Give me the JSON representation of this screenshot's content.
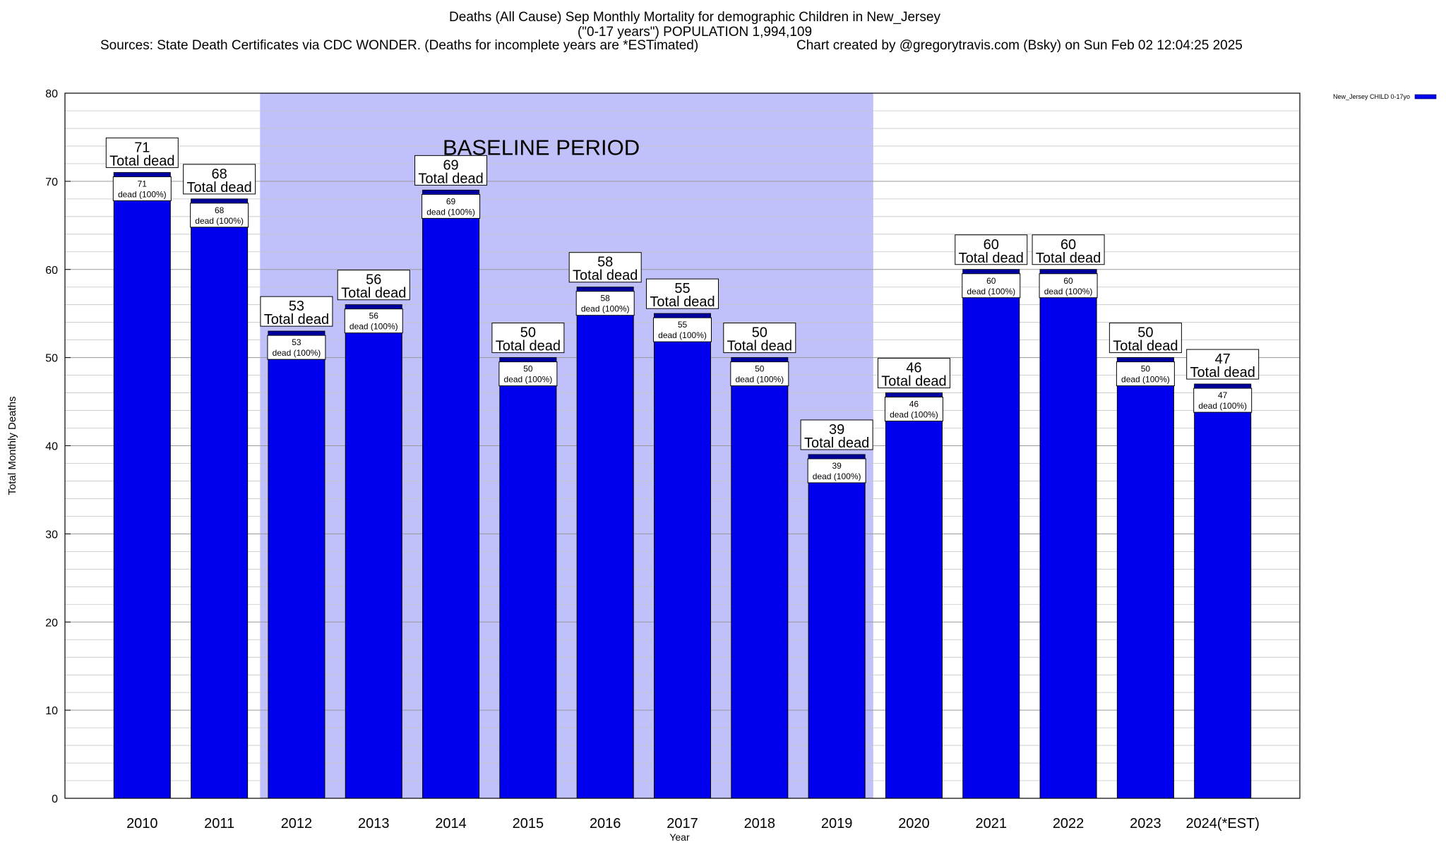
{
  "title": {
    "line1": "Deaths (All Cause) Sep Monthly Mortality for demographic Children in New_Jersey",
    "line2": "(\"0-17 years\") POPULATION 1,994,109",
    "sources": "Sources: State Death Certificates via CDC WONDER. (Deaths for incomplete years are *ESTimated)",
    "credit": "Chart created by @gregorytravis.com (Bsky) on Sun Feb 02 12:04:25 2025"
  },
  "chart_data": {
    "type": "bar",
    "xlabel": "Year",
    "ylabel": "Total Monthly Deaths",
    "ylim": [
      0,
      80
    ],
    "yticks": [
      0,
      10,
      20,
      30,
      40,
      50,
      60,
      70,
      80
    ],
    "grid": true,
    "legend": {
      "position": "top-right",
      "entries": [
        "New_Jersey CHILD 0-17yo"
      ]
    },
    "annotation": {
      "text": "BASELINE PERIOD",
      "from": "2012",
      "to": "2019"
    },
    "categories": [
      "2010",
      "2011",
      "2012",
      "2013",
      "2014",
      "2015",
      "2016",
      "2017",
      "2018",
      "2019",
      "2020",
      "2021",
      "2022",
      "2023",
      "2024(*EST)"
    ],
    "series": [
      {
        "name": "New_Jersey CHILD 0-17yo",
        "values": [
          71,
          68,
          53,
          56,
          69,
          50,
          58,
          55,
          50,
          39,
          46,
          60,
          60,
          50,
          47
        ]
      }
    ],
    "total_label": "Total dead",
    "inner_label_suffix": "dead (100%)",
    "colors": {
      "bar": "#0000ee",
      "baseline_band": "#c0c0fa",
      "cap": "#000099"
    }
  }
}
